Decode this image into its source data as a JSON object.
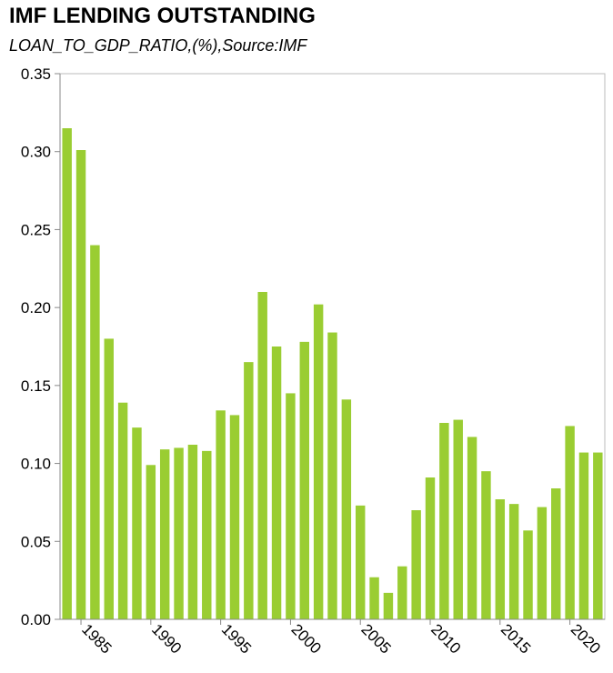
{
  "chart_data": {
    "type": "bar",
    "title": "IMF LENDING OUTSTANDING",
    "subtitle": "LOAN_TO_GDP_RATIO,(%),Source:IMF",
    "x": [
      1984,
      1985,
      1986,
      1987,
      1988,
      1989,
      1990,
      1991,
      1992,
      1993,
      1994,
      1995,
      1996,
      1997,
      1998,
      1999,
      2000,
      2001,
      2002,
      2003,
      2004,
      2005,
      2006,
      2007,
      2008,
      2009,
      2010,
      2011,
      2012,
      2013,
      2014,
      2015,
      2016,
      2017,
      2018,
      2019,
      2020,
      2021,
      2022
    ],
    "values": [
      0.315,
      0.301,
      0.24,
      0.18,
      0.139,
      0.123,
      0.099,
      0.109,
      0.11,
      0.112,
      0.108,
      0.134,
      0.131,
      0.165,
      0.21,
      0.175,
      0.145,
      0.178,
      0.202,
      0.184,
      0.141,
      0.073,
      0.027,
      0.017,
      0.034,
      0.07,
      0.091,
      0.126,
      0.128,
      0.117,
      0.095,
      0.077,
      0.074,
      0.057,
      0.072,
      0.084,
      0.124,
      0.107,
      0.107
    ],
    "x_ticks": [
      "1985",
      "1990",
      "1995",
      "2000",
      "2005",
      "2010",
      "2015",
      "2020"
    ],
    "y_ticks": [
      "0.00",
      "0.05",
      "0.10",
      "0.15",
      "0.20",
      "0.25",
      "0.30",
      "0.35"
    ],
    "ylim": [
      0,
      0.35
    ],
    "xlim": [
      1983.5,
      2022.5
    ],
    "bar_color": "#9acd32",
    "grid": false
  }
}
